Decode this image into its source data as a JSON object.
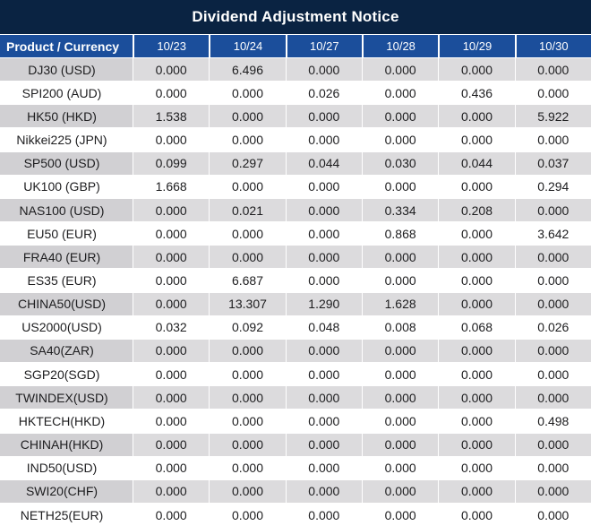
{
  "title": "Dividend Adjustment Notice",
  "colors": {
    "title_bg": "#0a2342",
    "header_bg": "#1b4e9b",
    "gray_row_bg": "#dcdbdd",
    "gray_row_label_bg": "#d1d0d3",
    "highlight_red": "#e8121d",
    "text": "#1d1d1f",
    "header_text": "#ffffff"
  },
  "chart_data": {
    "type": "table",
    "title": "Dividend Adjustment Notice",
    "product_header": "Product / Currency",
    "date_headers": [
      "10/23",
      "10/24",
      "10/27",
      "10/28",
      "10/29",
      "10/30"
    ],
    "rows": [
      {
        "product": "DJ30 (USD)",
        "values": [
          "0.000",
          "6.496",
          "0.000",
          "0.000",
          "0.000",
          "0.000"
        ],
        "red_flags": [
          false,
          true,
          false,
          false,
          false,
          false
        ]
      },
      {
        "product": "SPI200 (AUD)",
        "values": [
          "0.000",
          "0.000",
          "0.026",
          "0.000",
          "0.436",
          "0.000"
        ],
        "red_flags": [
          false,
          false,
          true,
          false,
          true,
          false
        ]
      },
      {
        "product": "HK50 (HKD)",
        "values": [
          "1.538",
          "0.000",
          "0.000",
          "0.000",
          "0.000",
          "5.922"
        ],
        "red_flags": [
          true,
          false,
          false,
          false,
          false,
          true
        ]
      },
      {
        "product": "Nikkei225 (JPN)",
        "values": [
          "0.000",
          "0.000",
          "0.000",
          "0.000",
          "0.000",
          "0.000"
        ],
        "red_flags": [
          false,
          false,
          false,
          false,
          false,
          false
        ]
      },
      {
        "product": "SP500 (USD)",
        "values": [
          "0.099",
          "0.297",
          "0.044",
          "0.030",
          "0.044",
          "0.037"
        ],
        "red_flags": [
          true,
          true,
          true,
          true,
          true,
          true
        ]
      },
      {
        "product": "UK100 (GBP)",
        "values": [
          "1.668",
          "0.000",
          "0.000",
          "0.000",
          "0.000",
          "0.294"
        ],
        "red_flags": [
          true,
          false,
          false,
          false,
          false,
          true
        ]
      },
      {
        "product": "NAS100 (USD)",
        "values": [
          "0.000",
          "0.021",
          "0.000",
          "0.334",
          "0.208",
          "0.000"
        ],
        "red_flags": [
          false,
          true,
          false,
          true,
          true,
          false
        ]
      },
      {
        "product": "EU50 (EUR)",
        "values": [
          "0.000",
          "0.000",
          "0.000",
          "0.868",
          "0.000",
          "3.642"
        ],
        "red_flags": [
          false,
          false,
          false,
          true,
          false,
          true
        ]
      },
      {
        "product": "FRA40 (EUR)",
        "values": [
          "0.000",
          "0.000",
          "0.000",
          "0.000",
          "0.000",
          "0.000"
        ],
        "red_flags": [
          false,
          false,
          false,
          false,
          false,
          false
        ]
      },
      {
        "product": "ES35 (EUR)",
        "values": [
          "0.000",
          "6.687",
          "0.000",
          "0.000",
          "0.000",
          "0.000"
        ],
        "red_flags": [
          false,
          true,
          false,
          false,
          false,
          false
        ]
      },
      {
        "product": "CHINA50(USD)",
        "values": [
          "0.000",
          "13.307",
          "1.290",
          "1.628",
          "0.000",
          "0.000"
        ],
        "red_flags": [
          false,
          true,
          true,
          true,
          false,
          false
        ]
      },
      {
        "product": "US2000(USD)",
        "values": [
          "0.032",
          "0.092",
          "0.048",
          "0.008",
          "0.068",
          "0.026"
        ],
        "red_flags": [
          true,
          true,
          true,
          true,
          true,
          true
        ]
      },
      {
        "product": "SA40(ZAR)",
        "values": [
          "0.000",
          "0.000",
          "0.000",
          "0.000",
          "0.000",
          "0.000"
        ],
        "red_flags": [
          false,
          false,
          false,
          false,
          false,
          false
        ]
      },
      {
        "product": "SGP20(SGD)",
        "values": [
          "0.000",
          "0.000",
          "0.000",
          "0.000",
          "0.000",
          "0.000"
        ],
        "red_flags": [
          false,
          false,
          false,
          false,
          false,
          false
        ]
      },
      {
        "product": "TWINDEX(USD)",
        "values": [
          "0.000",
          "0.000",
          "0.000",
          "0.000",
          "0.000",
          "0.000"
        ],
        "red_flags": [
          false,
          false,
          false,
          false,
          false,
          false
        ]
      },
      {
        "product": "HKTECH(HKD)",
        "values": [
          "0.000",
          "0.000",
          "0.000",
          "0.000",
          "0.000",
          "0.498"
        ],
        "red_flags": [
          false,
          false,
          false,
          false,
          false,
          true
        ]
      },
      {
        "product": "CHINAH(HKD)",
        "values": [
          "0.000",
          "0.000",
          "0.000",
          "0.000",
          "0.000",
          "0.000"
        ],
        "red_flags": [
          false,
          false,
          false,
          false,
          false,
          false
        ]
      },
      {
        "product": "IND50(USD)",
        "values": [
          "0.000",
          "0.000",
          "0.000",
          "0.000",
          "0.000",
          "0.000"
        ],
        "red_flags": [
          false,
          false,
          false,
          false,
          false,
          false
        ]
      },
      {
        "product": "SWI20(CHF)",
        "values": [
          "0.000",
          "0.000",
          "0.000",
          "0.000",
          "0.000",
          "0.000"
        ],
        "red_flags": [
          false,
          false,
          false,
          false,
          false,
          false
        ]
      },
      {
        "product": "NETH25(EUR)",
        "values": [
          "0.000",
          "0.000",
          "0.000",
          "0.000",
          "0.000",
          "0.000"
        ],
        "red_flags": [
          false,
          false,
          false,
          false,
          false,
          false
        ]
      }
    ]
  }
}
